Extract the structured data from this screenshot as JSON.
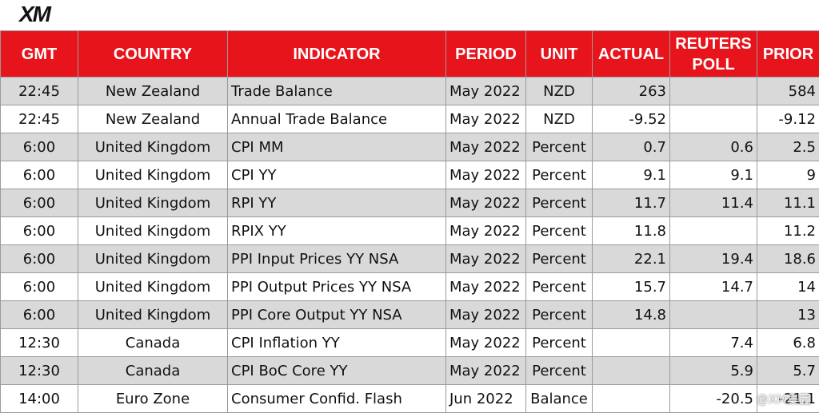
{
  "header": {
    "logo": "XM"
  },
  "table": {
    "headers": [
      "GMT",
      "COUNTRY",
      "INDICATOR",
      "PERIOD",
      "UNIT",
      "ACTUAL",
      "REUTERS POLL",
      "PRIOR"
    ],
    "rows": [
      [
        "22:45",
        "New Zealand",
        "Trade Balance",
        "May 2022",
        "NZD",
        "263",
        null,
        "584"
      ],
      [
        "22:45",
        "New Zealand",
        "Annual Trade Balance",
        "May 2022",
        "NZD",
        "-9.52",
        null,
        "-9.12"
      ],
      [
        "6:00",
        "United Kingdom",
        "CPI MM",
        "May 2022",
        "Percent",
        "0.7",
        "0.6",
        "2.5"
      ],
      [
        "6:00",
        "United Kingdom",
        "CPI YY",
        "May 2022",
        "Percent",
        "9.1",
        "9.1",
        "9"
      ],
      [
        "6:00",
        "United Kingdom",
        "RPI YY",
        "May 2022",
        "Percent",
        "11.7",
        "11.4",
        "11.1"
      ],
      [
        "6:00",
        "United Kingdom",
        "RPIX YY",
        "May 2022",
        "Percent",
        "11.8",
        null,
        "11.2"
      ],
      [
        "6:00",
        "United Kingdom",
        "PPI Input Prices YY NSA",
        "May 2022",
        "Percent",
        "22.1",
        "19.4",
        "18.6"
      ],
      [
        "6:00",
        "United Kingdom",
        "PPI Output Prices YY NSA",
        "May 2022",
        "Percent",
        "15.7",
        "14.7",
        "14"
      ],
      [
        "6:00",
        "United Kingdom",
        "PPI Core Output YY NSA",
        "May 2022",
        "Percent",
        "14.8",
        null,
        "13"
      ],
      [
        "12:30",
        "Canada",
        "CPI Inflation YY",
        "May 2022",
        "Percent",
        null,
        "7.4",
        "6.8"
      ],
      [
        "12:30",
        "Canada",
        "CPI BoC Core YY",
        "May 2022",
        "Percent",
        null,
        "5.9",
        "5.7"
      ],
      [
        "14:00",
        "Euro Zone",
        "Consumer Confid. Flash",
        "Jun 2022",
        "Balance",
        null,
        "-20.5",
        "-21.1"
      ]
    ]
  },
  "watermark": "@XM集团"
}
